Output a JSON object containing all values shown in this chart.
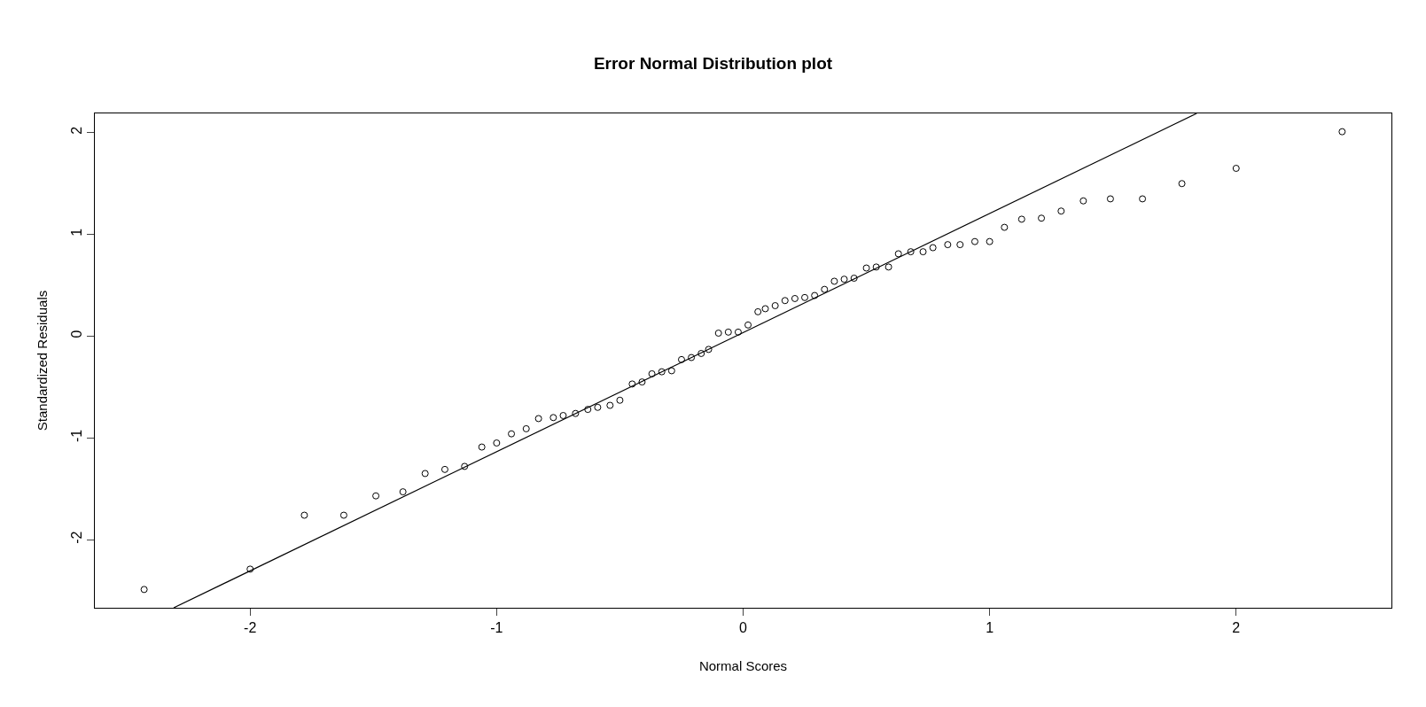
{
  "chart_data": {
    "type": "scatter",
    "title": "Error Normal Distribution plot",
    "xlabel": "Normal Scores",
    "ylabel": "Standardized Residuals",
    "xlim": [
      -2.63,
      2.63
    ],
    "xticks": [
      -2,
      -1,
      0,
      1,
      2
    ],
    "ylim": [
      -2.67,
      2.19
    ],
    "yticks": [
      -2,
      -1,
      0,
      1,
      2
    ],
    "grid": false,
    "marker": "circle",
    "series": [
      {
        "color": "#000000",
        "x": [
          -2.43,
          -2.0,
          -1.78,
          -1.62,
          -1.49,
          -1.38,
          -1.29,
          -1.21,
          -1.13,
          -1.06,
          -1.0,
          -0.94,
          -0.88,
          -0.83,
          -0.77,
          -0.73,
          -0.68,
          -0.63,
          -0.59,
          -0.54,
          -0.5,
          -0.45,
          -0.41,
          -0.37,
          -0.33,
          -0.29,
          -0.25,
          -0.21,
          -0.17,
          -0.14,
          -0.1,
          -0.06,
          -0.02,
          0.02,
          0.06,
          0.09,
          0.13,
          0.17,
          0.21,
          0.25,
          0.29,
          0.33,
          0.37,
          0.41,
          0.45,
          0.5,
          0.54,
          0.59,
          0.63,
          0.68,
          0.73,
          0.77,
          0.83,
          0.88,
          0.94,
          1.0,
          1.06,
          1.13,
          1.21,
          1.29,
          1.38,
          1.49,
          1.62,
          1.78,
          2.0,
          2.43
        ],
        "values": [
          -2.49,
          -2.29,
          -1.76,
          -1.76,
          -1.57,
          -1.53,
          -1.35,
          -1.31,
          -1.28,
          -1.09,
          -1.05,
          -0.96,
          -0.91,
          -0.81,
          -0.8,
          -0.78,
          -0.76,
          -0.72,
          -0.7,
          -0.68,
          -0.63,
          -0.47,
          -0.45,
          -0.37,
          -0.35,
          -0.34,
          -0.23,
          -0.21,
          -0.17,
          -0.13,
          0.03,
          0.04,
          0.04,
          0.11,
          0.24,
          0.27,
          0.3,
          0.35,
          0.37,
          0.38,
          0.4,
          0.46,
          0.54,
          0.56,
          0.57,
          0.67,
          0.68,
          0.68,
          0.81,
          0.83,
          0.83,
          0.87,
          0.9,
          0.9,
          0.93,
          0.93,
          1.07,
          1.15,
          1.16,
          1.23,
          1.33,
          1.35,
          1.35,
          1.5,
          1.65,
          2.01
        ]
      },
      {
        "type": "line",
        "marker": "none",
        "color": "#000000",
        "x": [
          -2.31,
          1.84
        ],
        "values": [
          -2.67,
          2.19
        ]
      }
    ]
  }
}
